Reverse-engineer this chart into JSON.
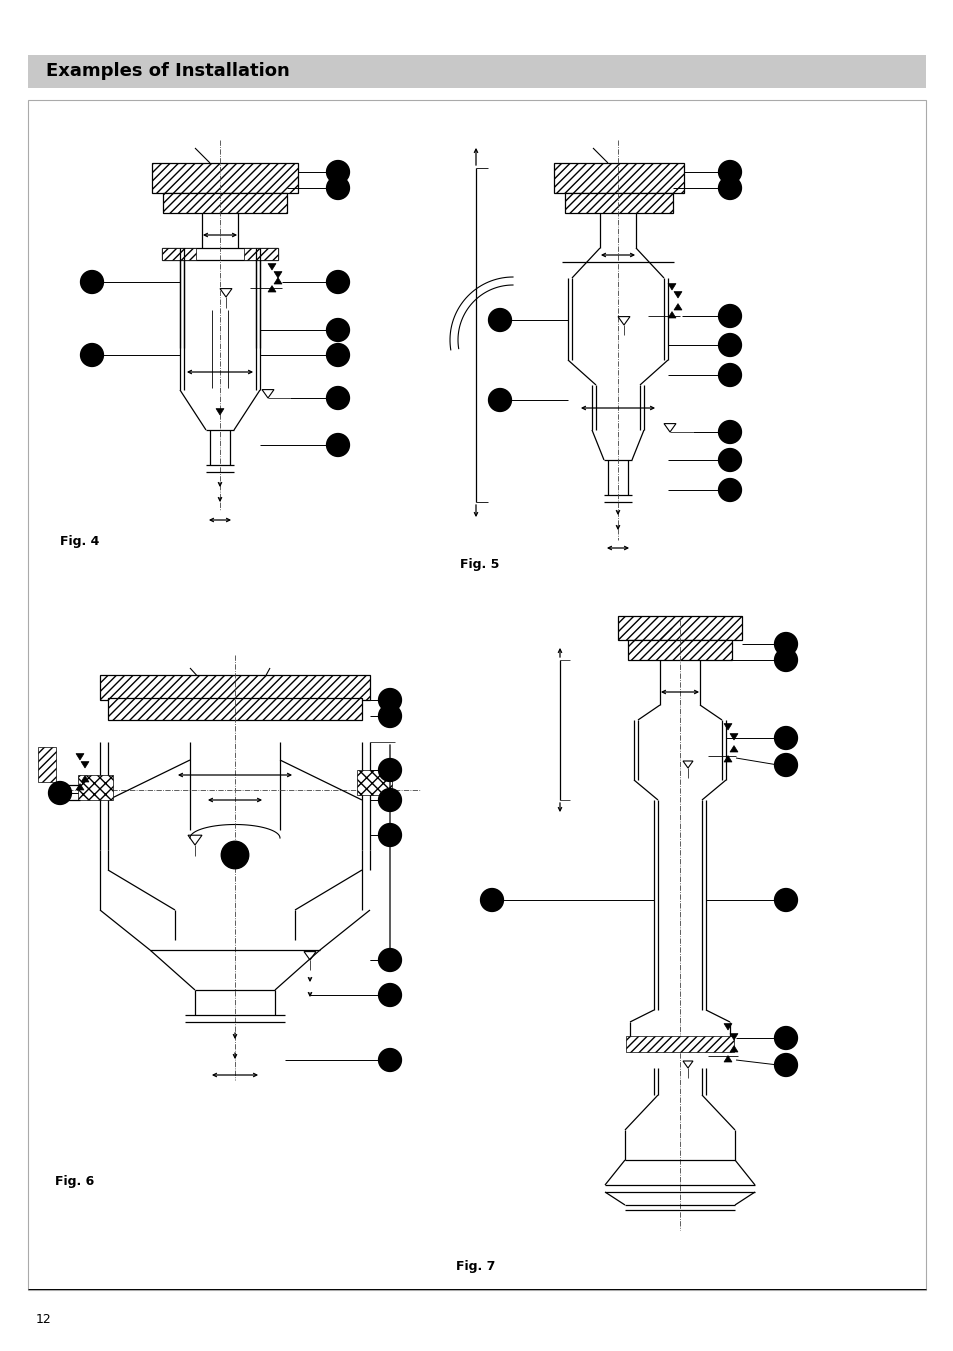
{
  "title": "Examples of Installation",
  "title_bg": "#c8c8c8",
  "title_color": "#000000",
  "page_bg": "#ffffff",
  "fig_labels": [
    "Fig. 4",
    "Fig. 5",
    "Fig. 6",
    "Fig. 7"
  ],
  "page_number": "12",
  "dot_r": 0.012,
  "lw": 0.9
}
